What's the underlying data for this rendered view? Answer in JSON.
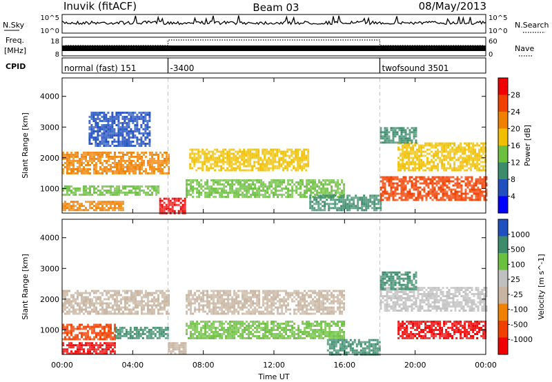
{
  "header": {
    "station": "Inuvik (fitACF)",
    "beam": "Beam 03",
    "date": "08/May/2013"
  },
  "noise_panel": {
    "left_label": "N.Sky",
    "right_label": "N.Search",
    "left_ticks": [
      "10^5",
      "10^0"
    ],
    "right_ticks": [
      "10^5",
      "10^0"
    ]
  },
  "freq_panel": {
    "left_label_line1": "Freq.",
    "left_label_line2": "[MHz]",
    "right_label": "Nave",
    "left_ticks": [
      "18",
      "8"
    ],
    "right_ticks": [
      "60",
      "0"
    ]
  },
  "cpid_panel": {
    "label": "CPID",
    "segments": [
      {
        "name": "normal (fast) 151",
        "start_hour": 0
      },
      {
        "name": "-3400",
        "start_hour": 6
      },
      {
        "name": "twofsound 3501",
        "start_hour": 18
      }
    ]
  },
  "time_axis": {
    "label": "Time UT",
    "ticks": [
      "00:00",
      "04:00",
      "08:00",
      "12:00",
      "16:00",
      "20:00",
      "00:00"
    ],
    "range_hours": [
      0,
      24
    ]
  },
  "colors": {
    "power_scale": [
      "#0000ff",
      "#2050c0",
      "#3c8c6c",
      "#6cc040",
      "#f0c000",
      "#f08000",
      "#f04000",
      "#f00000"
    ],
    "velocity_scale": [
      "#f00000",
      "#f04000",
      "#f08000",
      "#c8b4a0",
      "#c0c0c0",
      "#6cc040",
      "#3c8c6c",
      "#2050c0"
    ]
  },
  "chart_data": [
    {
      "type": "heatmap",
      "ylabel": "Slant Range [km]",
      "xlabel": "",
      "ylim": [
        200,
        4600
      ],
      "y_ticks": [
        1000,
        2000,
        3000,
        4000
      ],
      "colorbar": {
        "label": "Power [dB]",
        "ticks": [
          "4",
          "8",
          "12",
          "16",
          "20",
          "24",
          "28"
        ],
        "range": [
          0,
          30
        ]
      },
      "bands": [
        {
          "t0": 0.0,
          "t1": 6.0,
          "r0": 1500,
          "r1": 2200,
          "value": 22
        },
        {
          "t0": 0.0,
          "t1": 5.5,
          "r0": 800,
          "r1": 1100,
          "value": 14
        },
        {
          "t0": 0.0,
          "t1": 3.5,
          "r0": 300,
          "r1": 600,
          "value": 20
        },
        {
          "t0": 1.5,
          "t1": 5.0,
          "r0": 2400,
          "r1": 3500,
          "value": 6
        },
        {
          "t0": 5.5,
          "t1": 7.0,
          "r0": 200,
          "r1": 700,
          "value": 28
        },
        {
          "t0": 7.2,
          "t1": 14.0,
          "r0": 1600,
          "r1": 2300,
          "value": 18
        },
        {
          "t0": 7.0,
          "t1": 16.0,
          "r0": 700,
          "r1": 1300,
          "value": 12
        },
        {
          "t0": 14.0,
          "t1": 18.0,
          "r0": 300,
          "r1": 800,
          "value": 10
        },
        {
          "t0": 18.0,
          "t1": 24.0,
          "r0": 600,
          "r1": 1400,
          "value": 24
        },
        {
          "t0": 19.0,
          "t1": 24.0,
          "r0": 1600,
          "r1": 2500,
          "value": 16
        },
        {
          "t0": 18.0,
          "t1": 20.0,
          "r0": 2500,
          "r1": 3000,
          "value": 8
        }
      ]
    },
    {
      "type": "heatmap",
      "ylabel": "Slant Range [km]",
      "xlabel": "Time UT",
      "ylim": [
        200,
        4600
      ],
      "y_ticks": [
        1000,
        2000,
        3000,
        4000
      ],
      "colorbar": {
        "label": "Velocity [m s^-1]",
        "ticks": [
          "1000",
          "500",
          "100",
          "25",
          "-25",
          "-100",
          "-500",
          "-1000"
        ],
        "range": [
          -1000,
          1000
        ]
      },
      "bands": [
        {
          "t0": 0.0,
          "t1": 6.0,
          "r0": 1500,
          "r1": 2300,
          "value": 0
        },
        {
          "t0": 0.0,
          "t1": 3.0,
          "r0": 700,
          "r1": 1200,
          "value": -300
        },
        {
          "t0": 0.0,
          "t1": 3.0,
          "r0": 200,
          "r1": 600,
          "value": -600
        },
        {
          "t0": 3.0,
          "t1": 6.0,
          "r0": 700,
          "r1": 1100,
          "value": 150
        },
        {
          "t0": 6.0,
          "t1": 7.0,
          "r0": 200,
          "r1": 600,
          "value": 0
        },
        {
          "t0": 7.0,
          "t1": 16.0,
          "r0": 1500,
          "r1": 2300,
          "value": 0
        },
        {
          "t0": 7.0,
          "t1": 16.0,
          "r0": 700,
          "r1": 1300,
          "value": 80
        },
        {
          "t0": 15.0,
          "t1": 18.0,
          "r0": 200,
          "r1": 700,
          "value": 120
        },
        {
          "t0": 19.0,
          "t1": 24.0,
          "r0": 700,
          "r1": 1300,
          "value": -600
        },
        {
          "t0": 18.0,
          "t1": 24.0,
          "r0": 1600,
          "r1": 2400,
          "value": 10
        },
        {
          "t0": 18.0,
          "t1": 20.0,
          "r0": 2300,
          "r1": 2900,
          "value": 200
        }
      ]
    }
  ]
}
